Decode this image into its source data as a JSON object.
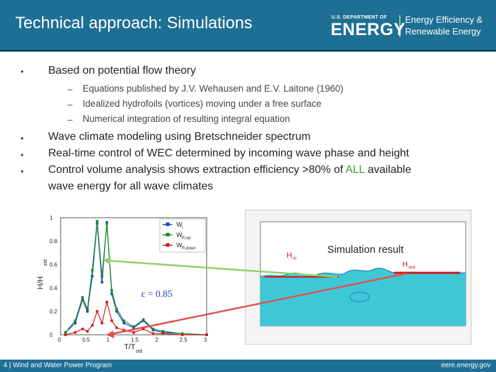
{
  "header": {
    "title": "Technical approach: Simulations",
    "logo_small": "U.S. DEPARTMENT OF",
    "logo_big": "ENERGY",
    "eere_line1": "Energy Efficiency &",
    "eere_line2": "Renewable Energy"
  },
  "bullets": [
    {
      "text": "Based on potential flow theory"
    },
    {
      "text": "Wave climate modeling using Bretschneider spectrum"
    },
    {
      "text": "Real-time control of WEC determined by incoming wave phase and height"
    },
    {
      "text_pre": "Control volume analysis shows extraction efficiency >80% of ",
      "highlight": "ALL",
      "text_post": " available",
      "line2": "wave energy for all wave climates"
    }
  ],
  "sub_bullets": [
    "Equations published by J.V. Wehausen and E.V. Laitone (1960)",
    "Idealized hydrofoils (vortices) moving under a free surface",
    "Numerical integration of resulting integral equation"
  ],
  "bullet_marker": "•",
  "dash_marker": "–",
  "chart_left": {
    "ylabel": "H/H",
    "ylabel_sub": "std",
    "xlabel": "T/T",
    "xlabel_sub": "std",
    "xticks": [
      "0",
      "0.5",
      "1",
      "1.5",
      "2",
      "2.5",
      "3"
    ],
    "yticks": [
      "0",
      "0.2",
      "0.4",
      "0.6",
      "0.8",
      "1"
    ],
    "legend": [
      {
        "label": "W",
        "sub": "I",
        "color": "#1a3fd1"
      },
      {
        "label": "W",
        "sub": "R,up",
        "color": "#1a8c1a"
      },
      {
        "label": "W",
        "sub": "R,down",
        "color": "#d11a1a"
      }
    ],
    "annotation": "ε = 0.85"
  },
  "chart_right": {
    "title": "Simulation result",
    "h_in": "H",
    "h_in_sub": "in",
    "h_out": "H",
    "h_out_sub": "out"
  },
  "chart_data": {
    "type": "line",
    "xlabel": "T/Tstd",
    "ylabel": "H/Hstd",
    "xlim": [
      0,
      3
    ],
    "ylim": [
      0,
      1
    ],
    "grid": false,
    "legend_position": "top-right",
    "series": [
      {
        "name": "WI",
        "color": "#1a3fd1",
        "x": [
          0.1,
          0.3,
          0.45,
          0.55,
          0.65,
          0.75,
          0.85,
          0.95,
          1.05,
          1.15,
          1.3,
          1.5,
          1.7,
          1.9,
          2.1,
          2.5,
          3.0
        ],
        "values": [
          0.02,
          0.1,
          0.3,
          0.2,
          0.5,
          0.95,
          0.45,
          0.96,
          0.35,
          0.2,
          0.1,
          0.06,
          0.12,
          0.04,
          0.02,
          0.01,
          0.0
        ]
      },
      {
        "name": "WR,up",
        "color": "#1a8c1a",
        "x": [
          0.1,
          0.3,
          0.45,
          0.55,
          0.65,
          0.75,
          0.85,
          0.95,
          1.05,
          1.15,
          1.3,
          1.5,
          1.7,
          1.9,
          2.1,
          2.5,
          3.0
        ],
        "values": [
          0.02,
          0.12,
          0.32,
          0.22,
          0.55,
          0.97,
          0.5,
          0.95,
          0.38,
          0.22,
          0.12,
          0.07,
          0.13,
          0.05,
          0.03,
          0.01,
          0.0
        ]
      },
      {
        "name": "WR,down",
        "color": "#d11a1a",
        "x": [
          0.1,
          0.3,
          0.45,
          0.55,
          0.65,
          0.75,
          0.85,
          0.95,
          1.05,
          1.15,
          1.3,
          1.5,
          1.7,
          1.9,
          2.1,
          2.5,
          3.0
        ],
        "values": [
          0.0,
          0.02,
          0.05,
          0.03,
          0.08,
          0.2,
          0.1,
          0.28,
          0.12,
          0.06,
          0.04,
          0.02,
          0.05,
          0.01,
          0.01,
          0.0,
          0.0
        ]
      }
    ]
  },
  "footer": {
    "left": "4 | Wind and Water Power Program",
    "right": "eere.energy.gov"
  }
}
